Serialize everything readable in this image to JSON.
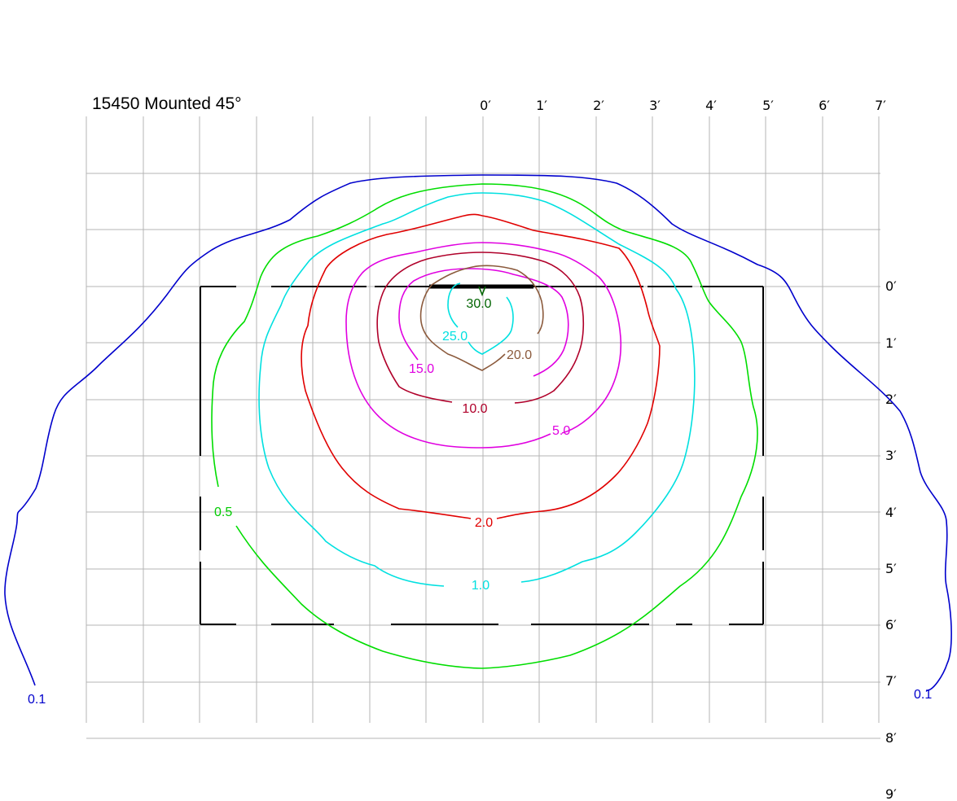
{
  "title": "15450 Mounted 45°",
  "x_ticks": [
    "0′",
    "1′",
    "2′",
    "3′",
    "4′",
    "5′",
    "6′",
    "7′"
  ],
  "y_ticks": [
    "0′",
    "1′",
    "2′",
    "3′",
    "4′",
    "5′",
    "6′",
    "7′",
    "8′",
    "9′"
  ],
  "contour_labels": [
    {
      "text": "30.0",
      "color": "#006400"
    },
    {
      "text": "25.0",
      "color": "#00e5e5"
    },
    {
      "text": "20.0",
      "color": "#8b5a3c"
    },
    {
      "text": "15.0",
      "color": "#e000e0"
    },
    {
      "text": "10.0",
      "color": "#b0002a"
    },
    {
      "text": "5.0",
      "color": "#e000e0"
    },
    {
      "text": "2.0",
      "color": "#e00000"
    },
    {
      "text": "1.0",
      "color": "#00e5e5"
    },
    {
      "text": "0.5",
      "color": "#00cc00"
    },
    {
      "text": "0.1",
      "color": "#0000cc"
    },
    {
      "text": "0.1",
      "color": "#0000cc"
    }
  ]
}
